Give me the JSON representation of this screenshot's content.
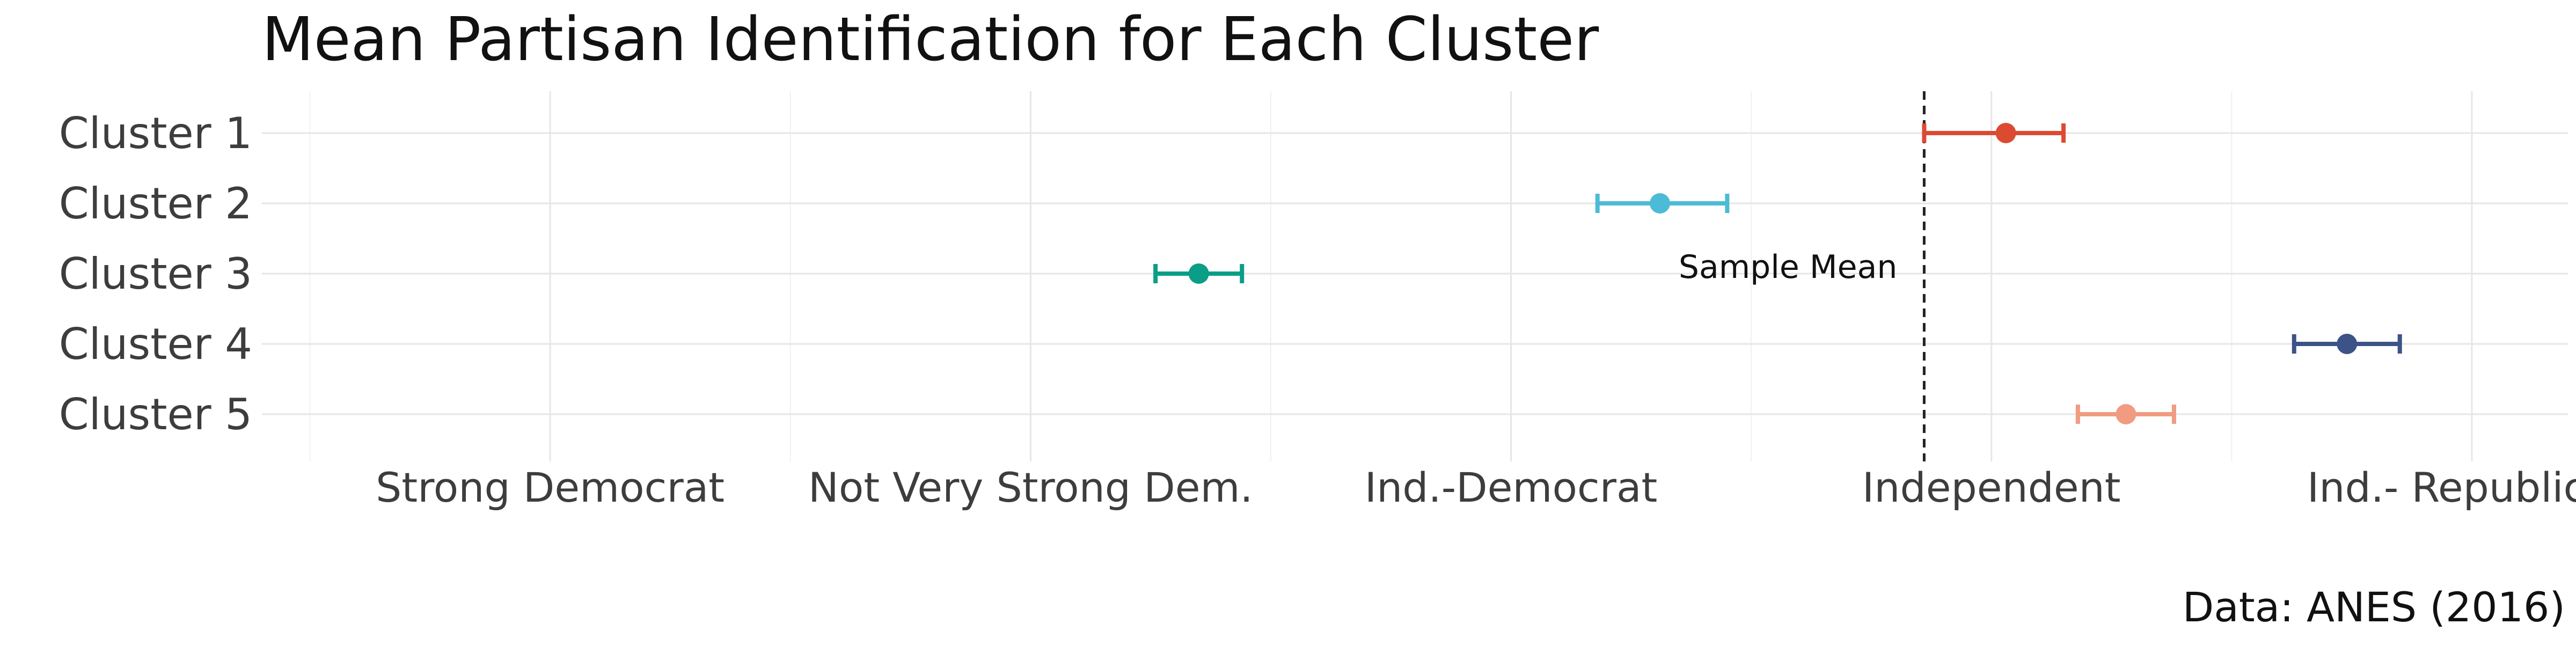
{
  "chart_data": {
    "type": "scatter",
    "title": "Mean Partisan Identification for Each Cluster",
    "caption": "Data: ANES (2016)",
    "xlabel": "",
    "ylabel": "",
    "xlim": [
      0.4,
      5.2
    ],
    "x_ticks": [
      {
        "value": 1,
        "label": "Strong Democrat"
      },
      {
        "value": 2,
        "label": "Not Very Strong Dem."
      },
      {
        "value": 3,
        "label": "Ind.-Democrat"
      },
      {
        "value": 4,
        "label": "Independent"
      },
      {
        "value": 5,
        "label": "Ind.- Republican"
      }
    ],
    "categories": [
      "Cluster 1",
      "Cluster 2",
      "Cluster 3",
      "Cluster 4",
      "Cluster 5"
    ],
    "series": [
      {
        "category": "Cluster 1",
        "mean": 4.03,
        "lower": 3.86,
        "upper": 4.15,
        "color": "#dc4a32"
      },
      {
        "category": "Cluster 2",
        "mean": 3.31,
        "lower": 3.18,
        "upper": 3.45,
        "color": "#4cbbd6"
      },
      {
        "category": "Cluster 3",
        "mean": 2.35,
        "lower": 2.26,
        "upper": 2.44,
        "color": "#0b9e87"
      },
      {
        "category": "Cluster 4",
        "mean": 4.74,
        "lower": 4.63,
        "upper": 4.85,
        "color": "#3b5386"
      },
      {
        "category": "Cluster 5",
        "mean": 4.28,
        "lower": 4.18,
        "upper": 4.38,
        "color": "#f19b81"
      }
    ],
    "reference_line": {
      "value": 3.86,
      "label": "Sample Mean",
      "style": "dashed"
    },
    "grid": true,
    "legend": "none"
  }
}
